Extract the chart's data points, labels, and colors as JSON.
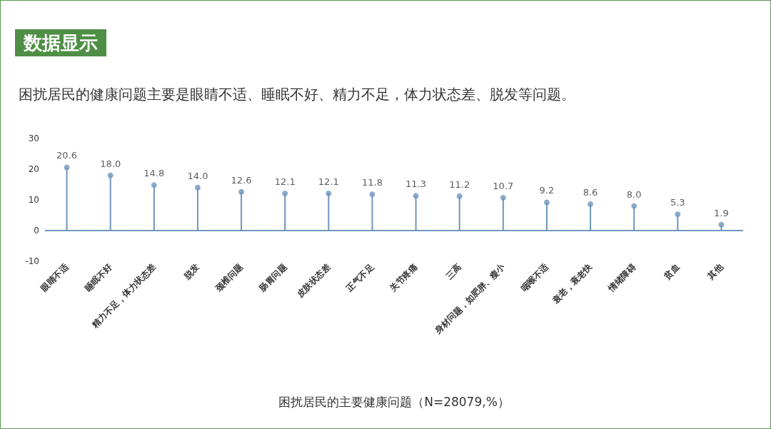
{
  "chart_data": {
    "type": "lollipop",
    "title": "数据显示",
    "subtitle": "困扰居民的健康问题主要是眼睛不适、睡眠不好、精力不足，体力状态差、脱发等问题。",
    "xlabel": "困扰居民的主要健康问题（N=28079,%）",
    "categories": [
      "眼睛不适",
      "睡眠不好",
      "精力不足，体力状态差",
      "脱发",
      "颈椎问题",
      "肠胃问题",
      "皮肤状态差",
      "正气不足",
      "关节疼痛",
      "三高",
      "身材问题，如肥胖、瘦小",
      "咽喉不适",
      "衰老，衰老快",
      "情绪障碍",
      "贫血",
      "其他"
    ],
    "values": [
      20.6,
      18.0,
      14.8,
      14.0,
      12.6,
      12.1,
      12.1,
      11.8,
      11.3,
      11.2,
      10.7,
      9.2,
      8.6,
      8.0,
      5.3,
      1.9
    ],
    "value_labels": [
      "20.6",
      "18.0",
      "14.8",
      "14.0",
      "12.6",
      "12.1",
      "12.1",
      "11.8",
      "11.3",
      "11.2",
      "10.7",
      "9.2",
      "8.6",
      "8.0",
      "5.3",
      "1.9"
    ],
    "color": "#6f96bd",
    "ylim": [
      -10,
      30
    ],
    "yticks": [
      -10,
      0,
      10,
      20,
      30
    ],
    "grid": false,
    "marker": "circle",
    "ref_lines": [
      {
        "axis": "y",
        "value": 0,
        "color": "#6f96bd"
      }
    ]
  }
}
